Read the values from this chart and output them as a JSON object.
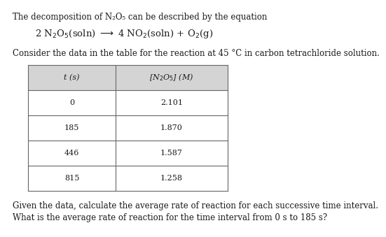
{
  "title_line": "The decomposition of N₂O₅ can be described by the equation",
  "equation_parts": "2 N₂O₅(soln) ⟶ 4 NO₂(soln) + O₂(g)",
  "subtitle": "Consider the data in the table for the reaction at 45 °C in carbon tetrachloride solution.",
  "col1_header": "t (s)",
  "col2_header": "[N₂O₅] (M)",
  "table_data": [
    [
      "0",
      "2.101"
    ],
    [
      "185",
      "1.870"
    ],
    [
      "446",
      "1.587"
    ],
    [
      "815",
      "1.258"
    ]
  ],
  "footer1": "Given the data, calculate the average rate of reaction for each successive time interval.",
  "footer2": "What is the average rate of reaction for the time interval from 0 s to 185 s?",
  "bg_color": "#ffffff",
  "table_header_bg": "#d4d4d4",
  "table_border_color": "#666666",
  "text_color": "#1a1a1a",
  "font_size_body": 8.5,
  "font_size_eq": 9.5,
  "font_size_table": 8.0
}
